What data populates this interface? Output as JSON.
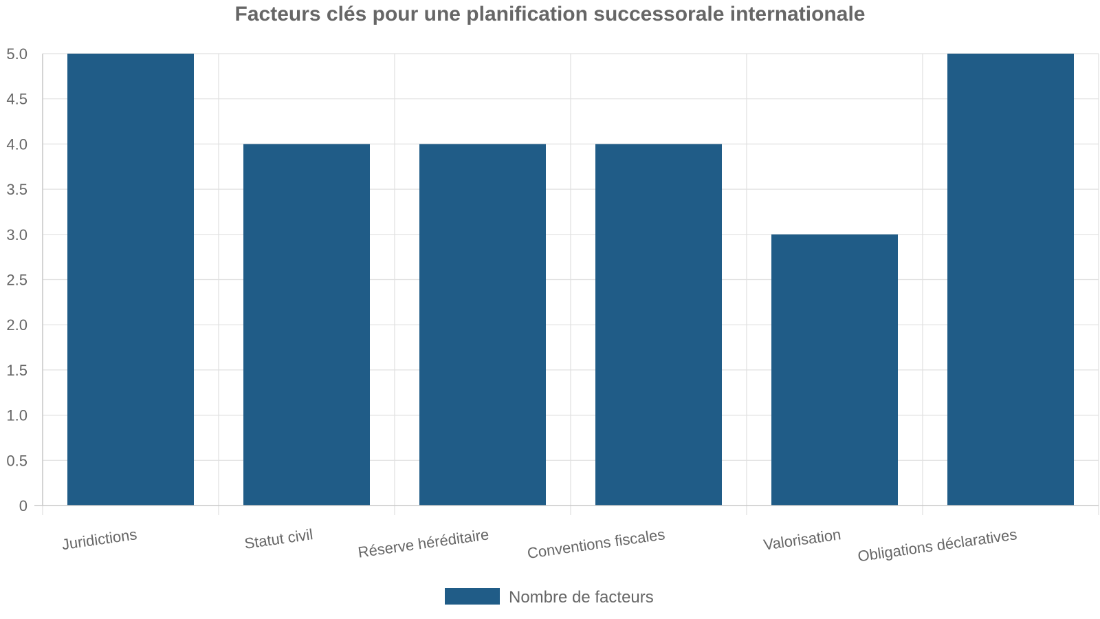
{
  "chart_data": {
    "type": "bar",
    "title": "Facteurs clés pour une planification successorale internationale",
    "categories": [
      "Juridictions",
      "Statut civil",
      "Réserve héréditaire",
      "Conventions fiscales",
      "Valorisation",
      "Obligations déclaratives"
    ],
    "series": [
      {
        "name": "Nombre de facteurs",
        "values": [
          5,
          4,
          4,
          4,
          3,
          5
        ],
        "color": "#205c87"
      }
    ],
    "xlabel": "",
    "ylabel": "",
    "ylim": [
      0,
      5
    ],
    "yticks": [
      "0",
      "0.5",
      "1.0",
      "1.5",
      "2.0",
      "2.5",
      "3.0",
      "3.5",
      "4.0",
      "4.5",
      "5.0"
    ],
    "grid": true,
    "legend_position": "bottom-center"
  }
}
